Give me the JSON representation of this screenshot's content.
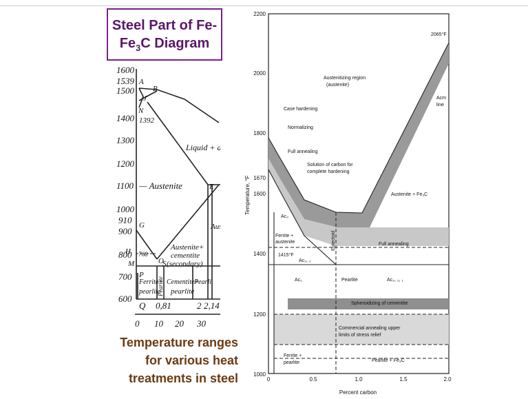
{
  "title": {
    "line1": "Steel Part of Fe-",
    "line2_main": "Fe",
    "line2_sub": "3",
    "line2_rest": "C Diagram"
  },
  "caption": {
    "line1": "Temperature ranges",
    "line2": "for various heat",
    "line3": "treatments in steel"
  },
  "left_diagram": {
    "y_ticks": [
      "1600",
      "1539",
      "1500",
      "1400",
      "1300",
      "1200",
      "1100",
      "1000",
      "910",
      "900",
      "800",
      "700",
      "600"
    ],
    "x_ticks": [
      "0",
      "10",
      "20",
      "30"
    ],
    "wt_ticks": [
      "Q",
      "0,81",
      "2",
      "2,14"
    ],
    "points": {
      "A": "A",
      "B": "B",
      "J": "J",
      "N": "N",
      "G": "G",
      "E": "E",
      "S": "S",
      "O": "O",
      "P": "P",
      "H": "H",
      "M": "M"
    },
    "labels": {
      "n1392": "1392",
      "liquid": "Liquid + au",
      "austenite": "— Austenite",
      "aus_right": "Aus",
      "aus_cem1": "Austenite+",
      "aus_cem2": "cementite",
      "aus_cem3": "(secondary)",
      "ferrite": "Ferrite+",
      "pearlite_l": "pearlite",
      "pearlite_v": "Pearlite",
      "cem_pearl1": "Cementite+",
      "cem_pearl2": "pearlite",
      "pearl_r": "Pearli",
      "n768": "768"
    }
  },
  "right_chart": {
    "ylabel": "Temperature, °F",
    "xlabel": "Percent carbon",
    "y_ticks": [
      "2200",
      "2000",
      "1800",
      "1670",
      "1600",
      "1400",
      "1200",
      "1000"
    ],
    "x_ticks": [
      "0",
      "0.5",
      "1.0",
      "1.5",
      "2.0"
    ],
    "labels": {
      "t2065": "2065°F",
      "aust_region1": "Austenitizing region",
      "aust_region2": "(austenite)",
      "case_hard": "Case hardening",
      "normalizing": "Normalizing",
      "full_anneal": "Full annealing",
      "solution1": "Solution of carbon for",
      "solution2": "complete hardening",
      "acm1": "Acm",
      "acm2": "line",
      "aust_fe3c": "Austenite + Fe₃C",
      "ac3": "Ac₃",
      "ferrite_aust1": "Ferrite +",
      "ferrite_aust2": "austenite",
      "t1415": "1415°F",
      "ac32": "Ac₃, ₂",
      "ac1": "Ac₁",
      "eutectoid": "Eutectoid",
      "full_anneal_band": "Full annealing",
      "pearlite": "Pearlite",
      "ac321": "Ac₃, ₂, ₁",
      "spheroid": "Spheroidizing of cementite",
      "commercial1": "Commercial annealing upper",
      "commercial2": "limits of stress relief",
      "ferrite_pearl1": "Ferrite +",
      "ferrite_pearl2": "pearlite",
      "pearl_fe3c": "Pearlite + Fe₃C"
    }
  },
  "colors": {
    "title": "#5a176a",
    "title_border": "#7a1f8a",
    "caption": "#6b3a12"
  }
}
